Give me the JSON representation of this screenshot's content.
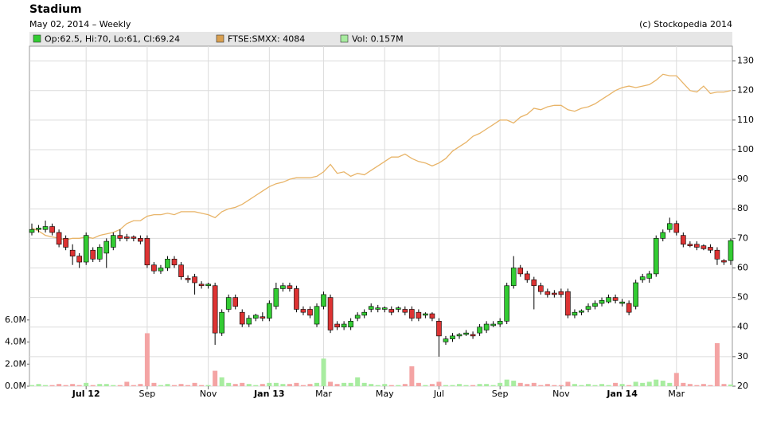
{
  "chart_data": {
    "type": "candlestick",
    "title": "Stadium",
    "subtitle": "May 02, 2014 – Weekly",
    "credit": "(c) Stockopedia 2014",
    "legend": [
      "Op:62.5, Hi:70, Lo:61, Cl:69.24",
      "FTSE:SMXX: 4084",
      "Vol: 0.157M"
    ],
    "up_color": "#33cc33",
    "down_color": "#dd3333",
    "index_color": "#e8b468",
    "legend_index_color": "#d9a050",
    "vol_up_color": "#a8eca0",
    "vol_down_color": "#f4a4a4",
    "grid": true,
    "ylim": [
      20,
      135
    ],
    "yticks": [
      20,
      30,
      40,
      50,
      60,
      70,
      80,
      90,
      100,
      110,
      120,
      130
    ],
    "y2lim": [
      0,
      30.8
    ],
    "y2ticks": [
      {
        "value": 0,
        "label": "0.0M"
      },
      {
        "value": 2,
        "label": "2.0M"
      },
      {
        "value": 4,
        "label": "4.0M"
      },
      {
        "value": 6,
        "label": "6.0M"
      }
    ],
    "categories": [
      null,
      null,
      null,
      null,
      null,
      null,
      null,
      null,
      "Jul 12",
      null,
      null,
      null,
      null,
      null,
      null,
      null,
      null,
      "Sep",
      null,
      null,
      null,
      null,
      null,
      null,
      null,
      null,
      "Nov",
      null,
      null,
      null,
      null,
      null,
      null,
      null,
      null,
      "Jan 13",
      null,
      null,
      null,
      null,
      null,
      null,
      null,
      "Mar",
      null,
      null,
      null,
      null,
      null,
      null,
      null,
      null,
      "May",
      null,
      null,
      null,
      null,
      null,
      null,
      null,
      "Jul",
      null,
      null,
      null,
      null,
      null,
      null,
      null,
      null,
      "Sep",
      null,
      null,
      null,
      null,
      null,
      null,
      null,
      null,
      "Nov",
      null,
      null,
      null,
      null,
      null,
      null,
      null,
      null,
      "Jan 14",
      null,
      null,
      null,
      null,
      null,
      null,
      null,
      "Mar",
      null,
      null,
      null,
      null,
      null,
      null,
      null,
      null
    ],
    "ohlc": [
      [
        72,
        75,
        71,
        73
      ],
      [
        73,
        74.5,
        72,
        73.5
      ],
      [
        73,
        76,
        72,
        74
      ],
      [
        74,
        75,
        71,
        72
      ],
      [
        72,
        73,
        67,
        68
      ],
      [
        70,
        71,
        66,
        67
      ],
      [
        66,
        68,
        61,
        64
      ],
      [
        64,
        65,
        60,
        62
      ],
      [
        62,
        72,
        61,
        71
      ],
      [
        66,
        67,
        62,
        63
      ],
      [
        63,
        68,
        62,
        67
      ],
      [
        65,
        70,
        60,
        69
      ],
      [
        67,
        72,
        66,
        71
      ],
      [
        71,
        73,
        69,
        70
      ],
      [
        70.5,
        71.5,
        69,
        70
      ],
      [
        70.5,
        71,
        69,
        70
      ],
      [
        70,
        71,
        68,
        69
      ],
      [
        70,
        71,
        60,
        61
      ],
      [
        61,
        62,
        58,
        59
      ],
      [
        59,
        61,
        58,
        60
      ],
      [
        60,
        64,
        59,
        63
      ],
      [
        63,
        64,
        60,
        61
      ],
      [
        61,
        62,
        56,
        57
      ],
      [
        56.5,
        57.5,
        55,
        56
      ],
      [
        57,
        58,
        51,
        55
      ],
      [
        54.5,
        55.5,
        53,
        54
      ],
      [
        54,
        55,
        53,
        54.5
      ],
      [
        54,
        55,
        34,
        38
      ],
      [
        38,
        46,
        37,
        45
      ],
      [
        46,
        51,
        45,
        50
      ],
      [
        50,
        51,
        46,
        47
      ],
      [
        45,
        46,
        40,
        41
      ],
      [
        41,
        44,
        40,
        43
      ],
      [
        43,
        44.5,
        42,
        44
      ],
      [
        43.5,
        45,
        42,
        43
      ],
      [
        43,
        49,
        42,
        48
      ],
      [
        47,
        55,
        46,
        53
      ],
      [
        53,
        55,
        52,
        54
      ],
      [
        54,
        55,
        52,
        53
      ],
      [
        53,
        54,
        45,
        46
      ],
      [
        46,
        47,
        44,
        45
      ],
      [
        46,
        47,
        43,
        44
      ],
      [
        41,
        48,
        40,
        47
      ],
      [
        47,
        52,
        46,
        51
      ],
      [
        50,
        51,
        38,
        39
      ],
      [
        41,
        42,
        39,
        40
      ],
      [
        40,
        42,
        39,
        41
      ],
      [
        40,
        43,
        39,
        42
      ],
      [
        43,
        45,
        42,
        44
      ],
      [
        44,
        46,
        43,
        45
      ],
      [
        46,
        48,
        45,
        47
      ],
      [
        46,
        47.5,
        45,
        46.5
      ],
      [
        46,
        47,
        45,
        46.5
      ],
      [
        46,
        47,
        44,
        45
      ],
      [
        46,
        47,
        45,
        46.5
      ],
      [
        46,
        47,
        44,
        45
      ],
      [
        46,
        47,
        42,
        43
      ],
      [
        45,
        46,
        42,
        43
      ],
      [
        44,
        45,
        43,
        44.5
      ],
      [
        44.5,
        45,
        42,
        43
      ],
      [
        42,
        43,
        30,
        37
      ],
      [
        35,
        37,
        34,
        36
      ],
      [
        36,
        38,
        35,
        37
      ],
      [
        37,
        38,
        36,
        37.5
      ],
      [
        37.5,
        39,
        37,
        38
      ],
      [
        37.5,
        38.5,
        36,
        37
      ],
      [
        38,
        41,
        37,
        40
      ],
      [
        39,
        42,
        38,
        41
      ],
      [
        40.5,
        42,
        40,
        41
      ],
      [
        41,
        43,
        40,
        42
      ],
      [
        42,
        55,
        41,
        54
      ],
      [
        54,
        64,
        53,
        60
      ],
      [
        60,
        61,
        57,
        58
      ],
      [
        58,
        59,
        55,
        56
      ],
      [
        56,
        57,
        46,
        54
      ],
      [
        54,
        55,
        51,
        52
      ],
      [
        52,
        53,
        50,
        51
      ],
      [
        51.5,
        52.5,
        50,
        51
      ],
      [
        52,
        53,
        50,
        51
      ],
      [
        52,
        53,
        43,
        44
      ],
      [
        44,
        46,
        43,
        45
      ],
      [
        45,
        46,
        44,
        45.5
      ],
      [
        46,
        48,
        45,
        47
      ],
      [
        47,
        49,
        46,
        48
      ],
      [
        48,
        50,
        47,
        49
      ],
      [
        48.5,
        51,
        48,
        50
      ],
      [
        50,
        51,
        48,
        49
      ],
      [
        48,
        49.5,
        47,
        48.5
      ],
      [
        48,
        49,
        44,
        45
      ],
      [
        47,
        56,
        46,
        55
      ],
      [
        56,
        58,
        55,
        57
      ],
      [
        56.5,
        59,
        55,
        58
      ],
      [
        58,
        71,
        57,
        70
      ],
      [
        70,
        73,
        69,
        72
      ],
      [
        73,
        77,
        72,
        75
      ],
      [
        75,
        76,
        71,
        72
      ],
      [
        71,
        72,
        67,
        68
      ],
      [
        68,
        69,
        67,
        67.5
      ],
      [
        68,
        69,
        66,
        67
      ],
      [
        67.5,
        68,
        66,
        66.5
      ],
      [
        67,
        68,
        65,
        66
      ],
      [
        66,
        67,
        61,
        63
      ],
      [
        62.5,
        63,
        61,
        62
      ],
      [
        62.5,
        70,
        61,
        69.24
      ]
    ],
    "volume": [
      0.1,
      0.2,
      0.1,
      0.1,
      0.2,
      0.1,
      0.2,
      0.1,
      0.3,
      0.1,
      0.2,
      0.2,
      0.1,
      0.1,
      0.4,
      0.1,
      0.2,
      4.8,
      0.3,
      0.1,
      0.2,
      0.1,
      0.2,
      0.1,
      0.3,
      0.1,
      0.1,
      1.4,
      0.8,
      0.3,
      0.2,
      0.3,
      0.2,
      0.1,
      0.2,
      0.3,
      0.3,
      0.2,
      0.2,
      0.3,
      0.1,
      0.2,
      0.3,
      2.5,
      0.4,
      0.2,
      0.3,
      0.3,
      0.8,
      0.3,
      0.2,
      0.1,
      0.2,
      0.1,
      0.1,
      0.2,
      1.8,
      0.3,
      0.1,
      0.2,
      0.4,
      0.1,
      0.1,
      0.2,
      0.1,
      0.1,
      0.2,
      0.2,
      0.1,
      0.3,
      0.6,
      0.5,
      0.3,
      0.2,
      0.3,
      0.1,
      0.2,
      0.1,
      0.1,
      0.4,
      0.2,
      0.1,
      0.2,
      0.1,
      0.2,
      0.1,
      0.3,
      0.2,
      0.1,
      0.4,
      0.3,
      0.4,
      0.6,
      0.5,
      0.3,
      1.2,
      0.3,
      0.2,
      0.1,
      0.2,
      0.1,
      3.9,
      0.2,
      0.157
    ],
    "index": [
      73.5,
      72.5,
      71,
      70.5,
      70,
      69.5,
      70,
      70,
      70.5,
      70,
      71,
      71.5,
      72,
      73,
      75,
      76,
      76,
      77.5,
      78,
      78,
      78.5,
      78,
      79,
      79,
      79,
      78.5,
      78,
      77,
      79,
      80,
      80.5,
      81.5,
      83,
      84.5,
      86,
      87.5,
      88.5,
      89,
      90,
      90.5,
      90.5,
      90.5,
      91,
      92.5,
      95,
      92,
      92.5,
      91,
      92,
      91.5,
      93,
      94.5,
      96,
      97.5,
      97.5,
      98.5,
      97,
      96,
      95.5,
      94.5,
      95.5,
      97,
      99.5,
      101,
      102.5,
      104.5,
      105.5,
      107,
      108.5,
      110,
      110,
      109,
      111,
      112,
      114,
      113.5,
      114.5,
      115,
      115,
      113.5,
      113,
      114,
      114.5,
      115.5,
      117,
      118.5,
      120,
      121,
      121.5,
      121,
      121.5,
      122,
      123.5,
      125.5,
      125,
      125,
      122.5,
      120,
      119.5,
      121.5,
      119,
      119.5,
      119.5,
      120
    ]
  }
}
